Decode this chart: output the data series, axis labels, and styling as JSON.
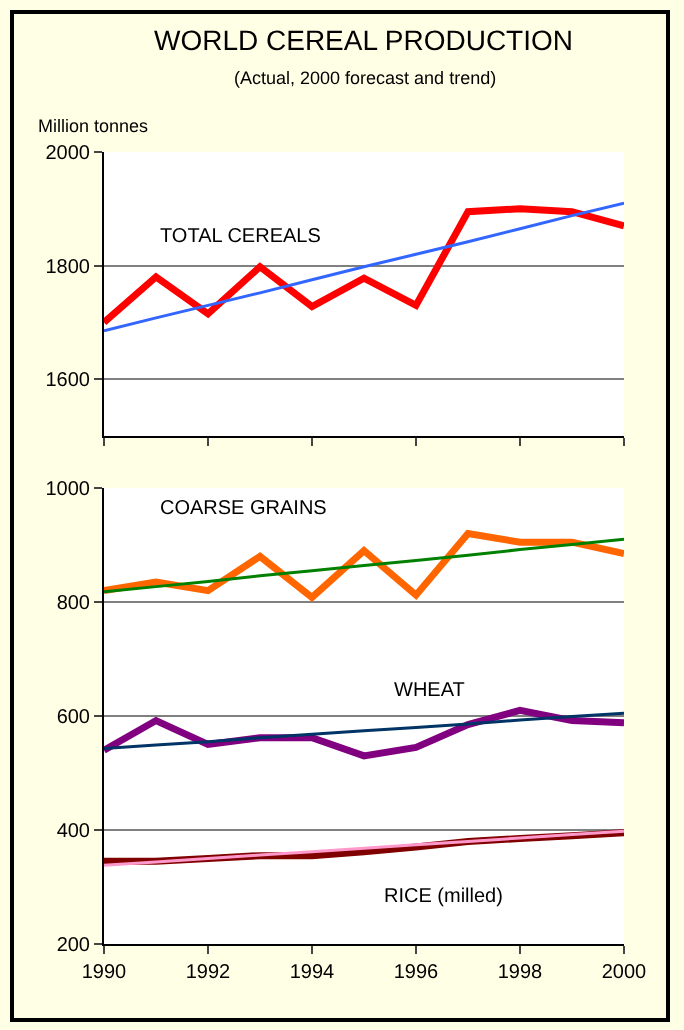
{
  "chart_data": [
    {
      "type": "line",
      "title": "WORLD CEREAL PRODUCTION",
      "subtitle": "(Actual, 2000 forecast and trend)",
      "ylabel": "Million tonnes",
      "x": [
        1990,
        1991,
        1992,
        1993,
        1994,
        1995,
        1996,
        1997,
        1998,
        1999,
        2000
      ],
      "xlim": [
        1990,
        2000
      ],
      "xticks": [
        1990,
        1992,
        1994,
        1996,
        1998,
        2000
      ],
      "ylim": [
        1500,
        2000
      ],
      "yticks": [
        1600,
        1800,
        2000
      ],
      "tick_labels": "y",
      "grid": "y",
      "marker": "none",
      "series": [
        {
          "name": "TOTAL CEREALS",
          "color": "#ff0000",
          "values": [
            1700,
            1780,
            1715,
            1798,
            1728,
            1778,
            1730,
            1895,
            1900,
            1895,
            1870
          ]
        },
        {
          "color": "#3366ff",
          "values": [
            1685,
            1708,
            1730,
            1752,
            1775,
            1798,
            1820,
            1842,
            1865,
            1888,
            1910
          ]
        }
      ]
    },
    {
      "type": "line",
      "x": [
        1990,
        1991,
        1992,
        1993,
        1994,
        1995,
        1996,
        1997,
        1998,
        1999,
        2000
      ],
      "xlim": [
        1990,
        2000
      ],
      "xticks": [
        1990,
        1992,
        1994,
        1996,
        1998,
        2000
      ],
      "ylim": [
        200,
        1000
      ],
      "yticks": [
        200,
        400,
        600,
        800,
        1000
      ],
      "grid": "y",
      "marker": "none",
      "series": [
        {
          "name": "COARSE GRAINS",
          "color": "#ff6600",
          "values": [
            820,
            835,
            820,
            880,
            808,
            890,
            812,
            920,
            905,
            905,
            885
          ]
        },
        {
          "color": "#008000",
          "values": [
            818,
            827,
            836,
            846,
            855,
            864,
            873,
            882,
            892,
            901,
            910
          ]
        },
        {
          "name": "WHEAT",
          "color": "#800080",
          "values": [
            540,
            592,
            550,
            562,
            562,
            530,
            545,
            585,
            610,
            592,
            588
          ]
        },
        {
          "color": "#003366",
          "values": [
            543,
            549,
            555,
            562,
            568,
            574,
            580,
            586,
            593,
            599,
            605
          ]
        },
        {
          "name": "RICE (milled)",
          "color": "#800000",
          "values": [
            345,
            345,
            350,
            355,
            355,
            362,
            370,
            380,
            385,
            390,
            395
          ]
        },
        {
          "color": "#ff99cc",
          "values": [
            338,
            344,
            350,
            356,
            362,
            368,
            374,
            380,
            386,
            392,
            398
          ]
        }
      ]
    }
  ]
}
